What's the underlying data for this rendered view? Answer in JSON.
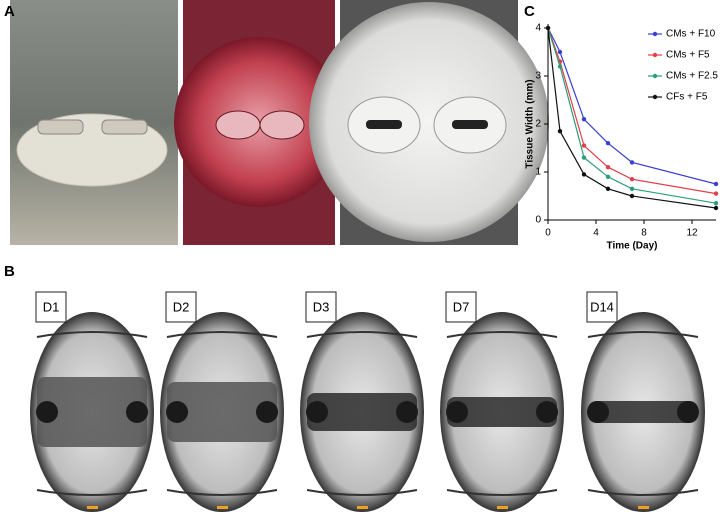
{
  "panels": {
    "a": "A",
    "b": "B",
    "c": "C"
  },
  "days": [
    "D1",
    "D2",
    "D3",
    "D7",
    "D14"
  ],
  "chart_data": {
    "type": "line",
    "xlabel": "Time (Day)",
    "ylabel": "Tissue Width (mm)",
    "xlim": [
      0,
      14
    ],
    "xticks": [
      0,
      4,
      8,
      12
    ],
    "ylim": [
      0,
      4
    ],
    "yticks": [
      0,
      1,
      2,
      3,
      4
    ],
    "legend": "upper right",
    "series": [
      {
        "name": "CMs + F10",
        "color": "#3a3fd0",
        "x": [
          0,
          1,
          3,
          5,
          7,
          14
        ],
        "values": [
          4,
          3.5,
          2.1,
          1.6,
          1.2,
          0.75
        ]
      },
      {
        "name": "CMs + F5",
        "color": "#e0404a",
        "x": [
          0,
          1,
          3,
          5,
          7,
          14
        ],
        "values": [
          4,
          3.3,
          1.55,
          1.1,
          0.85,
          0.55
        ]
      },
      {
        "name": "CMs + F2.5",
        "color": "#2a9d7a",
        "x": [
          0,
          1,
          3,
          5,
          7,
          14
        ],
        "values": [
          4,
          3.2,
          1.3,
          0.9,
          0.65,
          0.35
        ]
      },
      {
        "name": "CFs + F5",
        "color": "#111111",
        "x": [
          0,
          1,
          3,
          5,
          7,
          14
        ],
        "values": [
          4,
          1.85,
          0.95,
          0.65,
          0.5,
          0.25
        ]
      }
    ]
  }
}
